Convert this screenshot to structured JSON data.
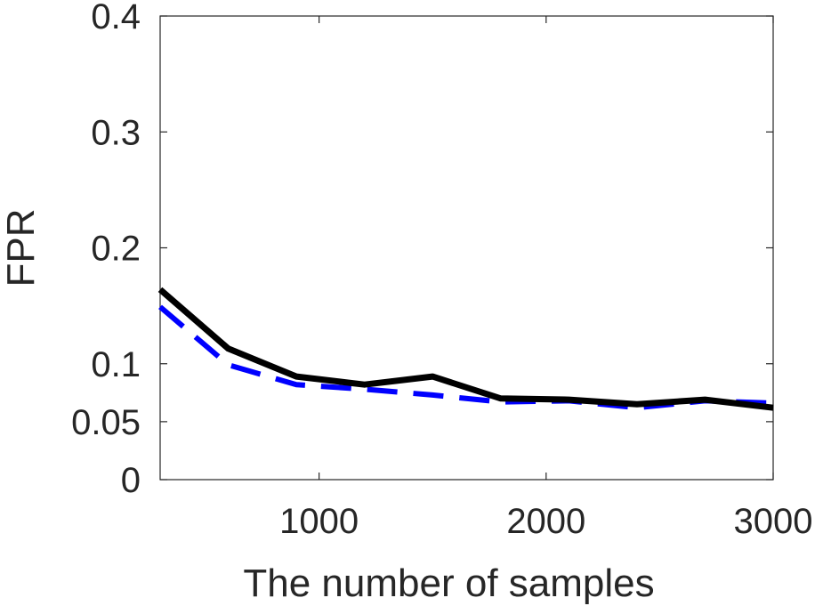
{
  "chart_data": {
    "type": "line",
    "title": "",
    "xlabel": "The number of samples",
    "ylabel": "FPR",
    "xlim": [
      300,
      3000
    ],
    "ylim": [
      0,
      0.4
    ],
    "x_ticks": [
      1000,
      2000,
      3000
    ],
    "x_tick_labels": [
      "1000",
      "2000",
      "3000"
    ],
    "y_ticks": [
      0,
      0.05,
      0.1,
      0.2,
      0.3,
      0.4
    ],
    "y_tick_labels": [
      "0",
      "0.05",
      "0.1",
      "0.2",
      "0.3",
      "0.4"
    ],
    "grid": false,
    "series": [
      {
        "color": "#000000",
        "style": "solid",
        "x": [
          300,
          600,
          900,
          1200,
          1500,
          1800,
          2100,
          2400,
          2700,
          3000
        ],
        "y": [
          0.164,
          0.113,
          0.089,
          0.082,
          0.089,
          0.07,
          0.069,
          0.065,
          0.069,
          0.062
        ]
      },
      {
        "color": "#0000ff",
        "style": "dashed",
        "x": [
          300,
          600,
          900,
          1200,
          1500,
          1800,
          2100,
          2400,
          2700,
          3000
        ],
        "y": [
          0.149,
          0.099,
          0.082,
          0.078,
          0.073,
          0.067,
          0.068,
          0.062,
          0.068,
          0.066
        ]
      }
    ]
  }
}
